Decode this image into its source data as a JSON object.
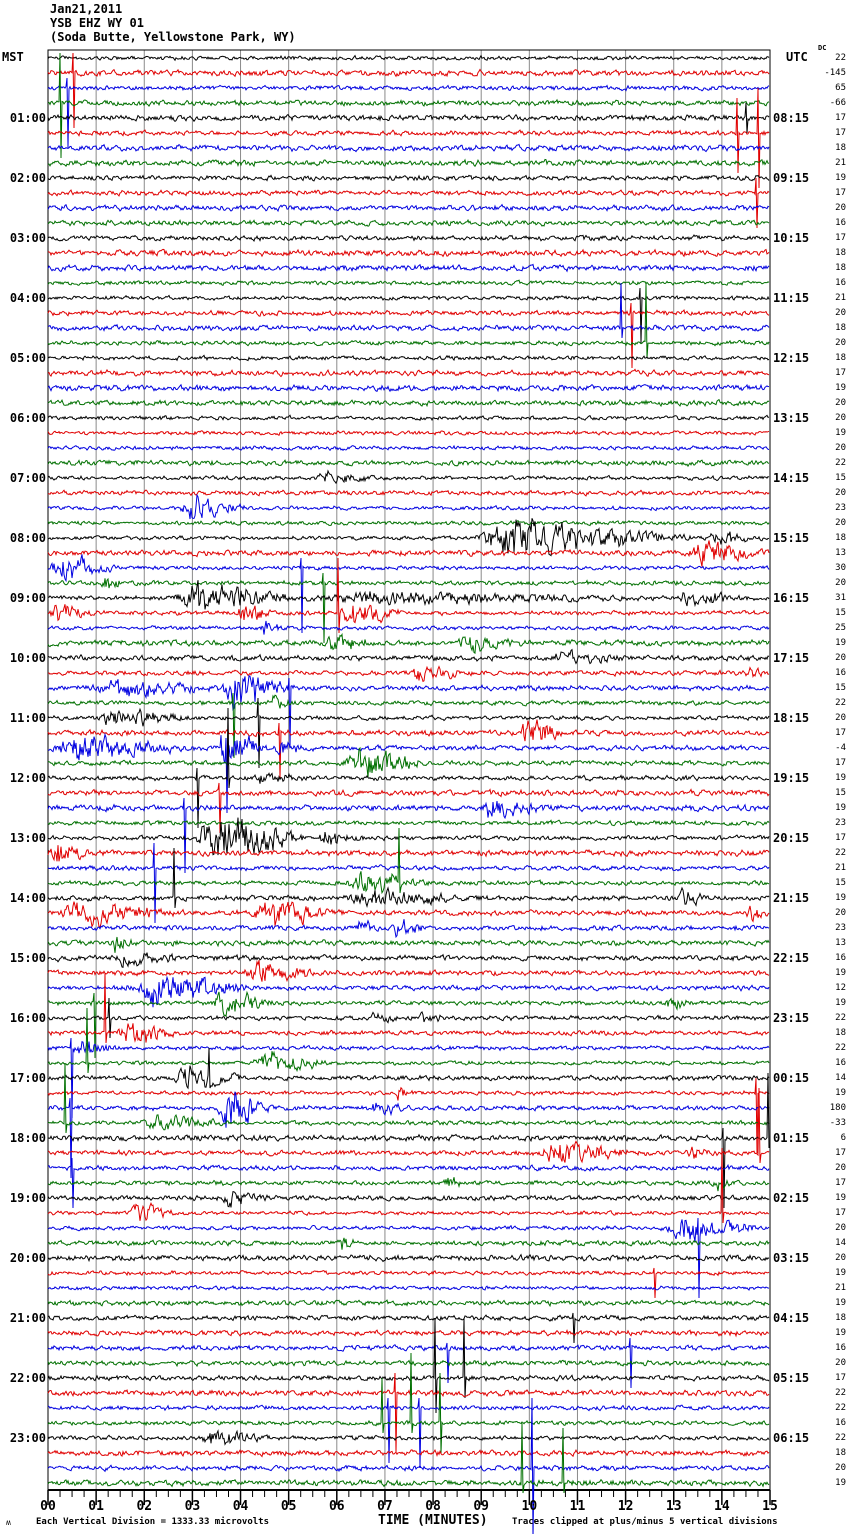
{
  "header": {
    "date": "Jan21,2011",
    "station": "YSB EHZ WY 01",
    "location": "(Soda Butte, Yellowstone Park, WY)",
    "left_timezone": "MST",
    "right_timezone": "UTC",
    "dc_column_header": "DC"
  },
  "footer": {
    "scale_note": "Each Vertical Division = 1333.33 microvolts",
    "x_axis_label": "TIME (MINUTES)",
    "clip_note": "Traces clipped at plus/minus 5 vertical divisions",
    "corner_mark": "ʍ"
  },
  "chart_data": {
    "type": "line",
    "title": "YSB EHZ WY 01 (Soda Butte, Yellowstone Park, WY) — Jan21,2011 helicorder",
    "x_axis": {
      "label": "TIME (MINUTES)",
      "min": 0,
      "max": 15,
      "tick_labels": [
        "00",
        "01",
        "02",
        "03",
        "04",
        "05",
        "06",
        "07",
        "08",
        "09",
        "10",
        "11",
        "12",
        "13",
        "14",
        "15"
      ]
    },
    "num_traces": 96,
    "minutes_per_trace": 15,
    "trace_color_cycle": [
      "#000000",
      "#e00000",
      "#0000e0",
      "#007000"
    ],
    "grid_color": "#8a8a8a",
    "scale": {
      "division_microvolts": 1333.33,
      "clip_divisions": 5
    },
    "left_time_labels": {
      "timezone": "MST",
      "first_row": 5,
      "row_step": 4,
      "labels": [
        "01:00",
        "02:00",
        "03:00",
        "04:00",
        "05:00",
        "06:00",
        "07:00",
        "08:00",
        "09:00",
        "10:00",
        "11:00",
        "12:00",
        "13:00",
        "14:00",
        "15:00",
        "16:00",
        "17:00",
        "18:00",
        "19:00",
        "20:00",
        "21:00",
        "22:00",
        "23:00"
      ]
    },
    "right_time_labels": {
      "timezone": "UTC",
      "first_row": 5,
      "row_step": 4,
      "labels": [
        "08:15",
        "09:15",
        "10:15",
        "11:15",
        "12:15",
        "13:15",
        "14:15",
        "15:15",
        "16:15",
        "17:15",
        "18:15",
        "19:15",
        "20:15",
        "21:15",
        "22:15",
        "23:15",
        "00:15",
        "01:15",
        "02:15",
        "03:15",
        "04:15",
        "05:15",
        "06:15"
      ]
    },
    "dc_offsets": [
      22,
      -145,
      65,
      -66,
      17,
      17,
      18,
      21,
      19,
      17,
      20,
      16,
      17,
      18,
      18,
      16,
      21,
      20,
      18,
      20,
      18,
      17,
      19,
      20,
      20,
      19,
      20,
      22,
      15,
      20,
      23,
      20,
      18,
      13,
      30,
      20,
      31,
      15,
      25,
      19,
      20,
      16,
      15,
      22,
      20,
      17,
      -4,
      17,
      19,
      15,
      19,
      23,
      17,
      22,
      21,
      15,
      19,
      20,
      23,
      13,
      16,
      19,
      12,
      19,
      22,
      18,
      22,
      16,
      14,
      19,
      180,
      -33,
      6,
      17,
      20,
      17,
      19,
      17,
      20,
      14,
      20,
      19,
      21,
      19,
      18,
      19,
      16,
      20,
      17,
      22,
      22,
      16,
      22,
      18,
      20,
      19
    ],
    "events": {
      "bursts": [
        [
          29,
          5.5,
          7.0,
          3
        ],
        [
          31,
          2.7,
          4.3,
          7
        ],
        [
          33,
          8.8,
          13.7,
          11
        ],
        [
          33,
          13.7,
          15,
          4
        ],
        [
          34,
          13.3,
          15,
          7
        ],
        [
          35,
          0,
          1.6,
          8
        ],
        [
          36,
          1.1,
          1.7,
          4
        ],
        [
          37,
          2.6,
          5.3,
          10
        ],
        [
          37,
          5.3,
          13,
          3.5
        ],
        [
          37,
          13,
          14.5,
          5
        ],
        [
          38,
          0,
          1.1,
          5
        ],
        [
          38,
          3.9,
          4.8,
          7
        ],
        [
          38,
          6.0,
          7.6,
          7
        ],
        [
          39,
          4.4,
          4.9,
          4
        ],
        [
          40,
          5.7,
          6.8,
          6
        ],
        [
          40,
          8.5,
          10,
          5
        ],
        [
          41,
          10.4,
          12.1,
          3
        ],
        [
          42,
          7.5,
          8.8,
          5
        ],
        [
          42,
          14.4,
          15,
          4
        ],
        [
          43,
          0.9,
          3.6,
          6
        ],
        [
          43,
          3.6,
          5.2,
          13
        ],
        [
          44,
          4.6,
          5.1,
          5
        ],
        [
          45,
          1.0,
          3.1,
          6
        ],
        [
          46,
          9.8,
          10.8,
          9
        ],
        [
          47,
          0,
          3.4,
          7
        ],
        [
          47,
          3.4,
          4.7,
          12
        ],
        [
          47,
          4.7,
          5.4,
          5
        ],
        [
          48,
          6.1,
          8.0,
          10
        ],
        [
          49,
          4.2,
          5.5,
          3
        ],
        [
          51,
          8.9,
          10.6,
          6
        ],
        [
          53,
          3.0,
          5.6,
          16
        ],
        [
          53,
          5.6,
          6.6,
          4
        ],
        [
          54,
          0,
          1.1,
          6
        ],
        [
          56,
          6.2,
          7.9,
          9
        ],
        [
          57,
          6.1,
          9.1,
          4
        ],
        [
          57,
          13.1,
          13.7,
          6
        ],
        [
          58,
          0.2,
          2.9,
          7
        ],
        [
          58,
          4.2,
          6.1,
          10
        ],
        [
          58,
          14.5,
          15,
          5
        ],
        [
          59,
          6.4,
          7.0,
          5
        ],
        [
          59,
          7.1,
          7.9,
          6
        ],
        [
          60,
          1.3,
          1.8,
          4
        ],
        [
          61,
          1.3,
          2.9,
          4
        ],
        [
          62,
          4.0,
          5.9,
          6
        ],
        [
          63,
          1.6,
          4.5,
          9
        ],
        [
          64,
          3.4,
          4.8,
          8
        ],
        [
          64,
          12.8,
          13.5,
          4
        ],
        [
          65,
          6.7,
          7.3,
          4
        ],
        [
          65,
          7.7,
          8.3,
          4
        ],
        [
          66,
          1.4,
          2.9,
          7
        ],
        [
          67,
          0.5,
          1.6,
          5
        ],
        [
          68,
          4.2,
          5.9,
          7
        ],
        [
          69,
          2.6,
          4.1,
          7
        ],
        [
          70,
          7.2,
          7.6,
          5
        ],
        [
          71,
          3.5,
          4.7,
          13
        ],
        [
          71,
          6.7,
          7.6,
          4
        ],
        [
          72,
          1.9,
          4.1,
          4
        ],
        [
          74,
          10.2,
          12.3,
          7
        ],
        [
          74,
          13.3,
          13.8,
          4
        ],
        [
          76,
          8.2,
          8.7,
          4
        ],
        [
          76,
          13.8,
          14.3,
          5
        ],
        [
          77,
          3.5,
          4.7,
          5
        ],
        [
          78,
          1.7,
          2.8,
          6
        ],
        [
          79,
          12.8,
          15,
          8
        ],
        [
          80,
          6.0,
          6.5,
          4
        ],
        [
          93,
          3.1,
          4.7,
          5
        ]
      ],
      "spikes": [
        [
          2,
          0.52,
          20,
          55
        ],
        [
          3,
          0.4,
          10,
          60
        ],
        [
          4,
          0.25,
          50,
          55
        ],
        [
          5,
          14.5,
          15,
          15
        ],
        [
          6,
          14.32,
          35,
          40
        ],
        [
          6,
          14.75,
          45,
          55
        ],
        [
          10,
          14.7,
          15,
          35
        ],
        [
          17,
          12.3,
          10,
          45
        ],
        [
          18,
          12.12,
          10,
          55
        ],
        [
          19,
          11.9,
          45,
          10
        ],
        [
          20,
          12.42,
          60,
          15
        ],
        [
          35,
          5.26,
          10,
          65
        ],
        [
          36,
          5.72,
          10,
          60
        ],
        [
          38,
          6.03,
          55,
          20
        ],
        [
          43,
          5.0,
          10,
          60
        ],
        [
          44,
          3.85,
          10,
          55
        ],
        [
          45,
          4.36,
          20,
          50
        ],
        [
          46,
          4.8,
          10,
          45
        ],
        [
          47,
          3.7,
          10,
          65
        ],
        [
          49,
          3.1,
          10,
          50
        ],
        [
          49,
          3.73,
          70,
          10
        ],
        [
          50,
          3.55,
          10,
          40
        ],
        [
          51,
          2.82,
          10,
          65
        ],
        [
          55,
          2.2,
          25,
          55
        ],
        [
          56,
          7.3,
          55,
          10
        ],
        [
          57,
          2.62,
          50,
          10
        ],
        [
          64,
          0.95,
          10,
          55
        ],
        [
          65,
          1.27,
          20,
          20
        ],
        [
          66,
          1.18,
          60,
          10
        ],
        [
          67,
          0.48,
          10,
          70
        ],
        [
          68,
          0.82,
          55,
          10
        ],
        [
          69,
          3.35,
          30,
          10
        ],
        [
          70,
          14.7,
          15,
          60
        ],
        [
          71,
          0.45,
          10,
          70
        ],
        [
          72,
          0.35,
          60,
          10
        ],
        [
          73,
          14.02,
          10,
          70
        ],
        [
          73,
          14.95,
          65,
          10
        ],
        [
          74,
          14.78,
          65,
          10
        ],
        [
          75,
          0.5,
          10,
          40
        ],
        [
          78,
          14.0,
          65,
          10
        ],
        [
          79,
          13.5,
          10,
          70
        ],
        [
          82,
          12.6,
          5,
          25
        ],
        [
          85,
          10.9,
          5,
          25
        ],
        [
          87,
          8.28,
          5,
          35
        ],
        [
          87,
          12.1,
          10,
          40
        ],
        [
          89,
          8.05,
          60,
          35
        ],
        [
          89,
          8.65,
          60,
          20
        ],
        [
          90,
          7.2,
          20,
          60
        ],
        [
          91,
          7.07,
          10,
          55
        ],
        [
          91,
          7.7,
          10,
          60
        ],
        [
          92,
          6.94,
          45,
          10
        ],
        [
          92,
          7.55,
          70,
          10
        ],
        [
          92,
          8.15,
          50,
          30
        ],
        [
          95,
          10.05,
          70,
          70
        ],
        [
          96,
          9.85,
          60,
          10
        ],
        [
          96,
          10.7,
          55,
          10
        ]
      ]
    }
  }
}
